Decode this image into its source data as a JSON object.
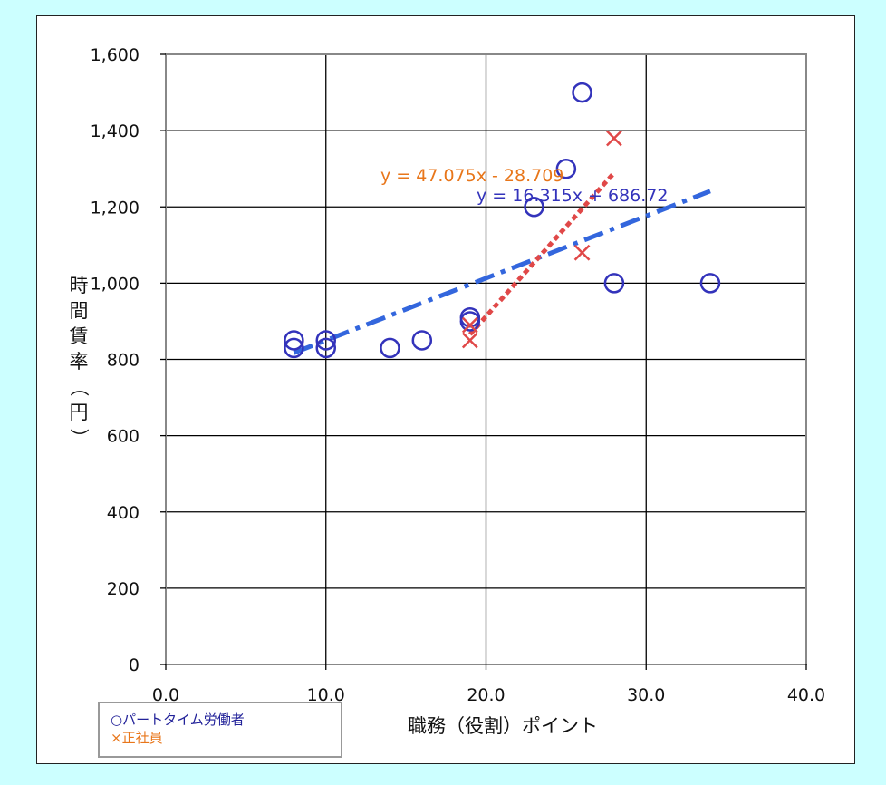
{
  "chart_data": {
    "type": "scatter",
    "xlabel": "職務（役割）ポイント",
    "ylabel": "時間賃率（円）",
    "xlim": [
      0,
      40
    ],
    "ylim": [
      0,
      1600
    ],
    "x_ticks": [
      0,
      10,
      20,
      30,
      40
    ],
    "x_tick_labels": [
      "0.0",
      "10.0",
      "20.0",
      "30.0",
      "40.0"
    ],
    "y_ticks": [
      0,
      200,
      400,
      600,
      800,
      1000,
      1200,
      1400,
      1600
    ],
    "y_tick_labels": [
      "0",
      "200",
      "400",
      "600",
      "800",
      "1,000",
      "1,200",
      "1,400",
      "1,600"
    ],
    "grid": true,
    "legend_position": "bottom-left",
    "series": [
      {
        "name": "○パートタイム労働者",
        "marker": "circle",
        "color": "#3333bb",
        "points": [
          [
            8,
            850
          ],
          [
            8,
            830
          ],
          [
            10,
            850
          ],
          [
            10,
            830
          ],
          [
            14,
            830
          ],
          [
            16,
            850
          ],
          [
            19,
            910
          ],
          [
            19,
            900
          ],
          [
            23,
            1200
          ],
          [
            25,
            1300
          ],
          [
            26,
            1500
          ],
          [
            28,
            1000
          ],
          [
            34,
            1000
          ]
        ],
        "trendline": {
          "equation": "y = 16.315x + 686.72",
          "slope": 16.315,
          "intercept": 686.72,
          "x_range": [
            8,
            34
          ],
          "color": "#3366dd",
          "style": "dash-dot"
        }
      },
      {
        "name": "×正社員",
        "marker": "x",
        "color": "#e04848",
        "points": [
          [
            19,
            850
          ],
          [
            19,
            890
          ],
          [
            26,
            1080
          ],
          [
            28,
            1380
          ]
        ],
        "trendline": {
          "equation": "y = 47.075x - 28.709",
          "slope": 47.075,
          "intercept": -28.709,
          "x_range": [
            19,
            28
          ],
          "color": "#e04848",
          "style": "dotted"
        }
      }
    ]
  },
  "colors": {
    "background": "#ccffff",
    "plot_border": "#888888",
    "gridline": "#000000",
    "eq_red_text": "#e8761a",
    "eq_blue_text": "#3333bb"
  }
}
